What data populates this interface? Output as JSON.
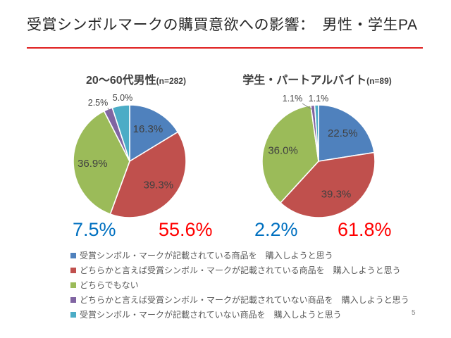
{
  "slide": {
    "title": "受賞シンボルマークの購買意欲への影響：　男性・学生PA",
    "page_number": "5",
    "accent_line_color": "#e02020"
  },
  "chart_data": [
    {
      "type": "pie",
      "title": "20～60代男性",
      "n_label": "(n=282)",
      "categories": [
        "受賞シンボル・マークが記載されている商品を　購入しようと思う",
        "どちらかと言えば受賞シンボル・マークが記載されている商品を　購入しようと思う",
        "どちらでもない",
        "どちらかと言えば受賞シンボル・マークが記載されていない商品を　購入しようと思う",
        "受賞シンボル・マークが記載されていない商品を　購入しようと思う"
      ],
      "values": [
        16.3,
        39.3,
        36.9,
        2.5,
        5.0
      ],
      "labels": [
        "16.3%",
        "39.3%",
        "36.9%",
        "2.5%",
        "5.0%"
      ],
      "colors": [
        "#4f81bd",
        "#c0504d",
        "#9bbb59",
        "#8064a2",
        "#4bacc6"
      ],
      "start_angle_deg": 0,
      "direction": "clockwise",
      "legend_position": "bottom-shared",
      "annotations": [
        "7.5%",
        "55.6%"
      ]
    },
    {
      "type": "pie",
      "title": "学生・パートアルバイト",
      "n_label": "(n=89)",
      "categories": [
        "受賞シンボル・マークが記載されている商品を　購入しようと思う",
        "どちらかと言えば受賞シンボル・マークが記載されている商品を　購入しようと思う",
        "どちらでもない",
        "どちらかと言えば受賞シンボル・マークが記載されていない商品を　購入しようと思う",
        "受賞シンボル・マークが記載されていない商品を　購入しようと思う"
      ],
      "values": [
        22.5,
        39.3,
        36.0,
        1.1,
        1.1
      ],
      "labels": [
        "22.5%",
        "39.3%",
        "36.0%",
        "1.1%",
        "1.1%"
      ],
      "colors": [
        "#4f81bd",
        "#c0504d",
        "#9bbb59",
        "#8064a2",
        "#4bacc6"
      ],
      "start_angle_deg": 0,
      "direction": "clockwise",
      "legend_position": "bottom-shared",
      "annotations": [
        "2.2%",
        "61.8%"
      ]
    }
  ],
  "summary": {
    "male": {
      "negative": "7.5%",
      "positive": "55.6%"
    },
    "student": {
      "negative": "2.2%",
      "positive": "61.8%"
    },
    "negative_color": "#0070c0",
    "positive_color": "#ff0000"
  },
  "legend": {
    "items": [
      {
        "color": "#4f81bd",
        "label": "受賞シンボル・マークが記載されている商品を　購入しようと思う"
      },
      {
        "color": "#c0504d",
        "label": "どちらかと言えば受賞シンボル・マークが記載されている商品を　購入しようと思う"
      },
      {
        "color": "#9bbb59",
        "label": "どちらでもない"
      },
      {
        "color": "#8064a2",
        "label": "どちらかと言えば受賞シンボル・マークが記載されていない商品を　購入しようと思う"
      },
      {
        "color": "#4bacc6",
        "label": "受賞シンボル・マークが記載されていない商品を　購入しようと思う"
      }
    ]
  }
}
